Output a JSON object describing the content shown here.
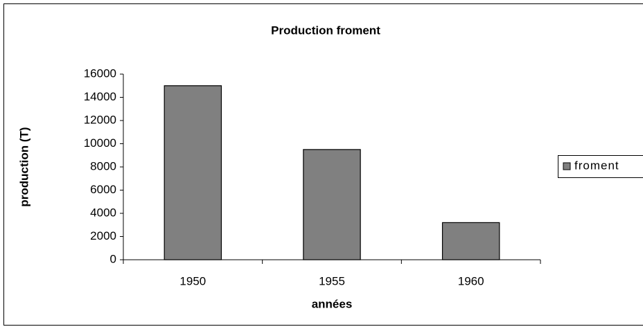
{
  "chart_data": {
    "type": "bar",
    "title": "Production froment",
    "x_label": "années",
    "y_label": "production (T)",
    "categories": [
      "1950",
      "1955",
      "1960"
    ],
    "series": [
      {
        "name": "froment",
        "color": "#808080",
        "values": [
          15000,
          9500,
          3200
        ]
      }
    ],
    "ylim": [
      0,
      16000
    ],
    "yticks": [
      0,
      2000,
      4000,
      6000,
      8000,
      10000,
      12000,
      14000,
      16000
    ],
    "grid": false,
    "legend": "right"
  }
}
